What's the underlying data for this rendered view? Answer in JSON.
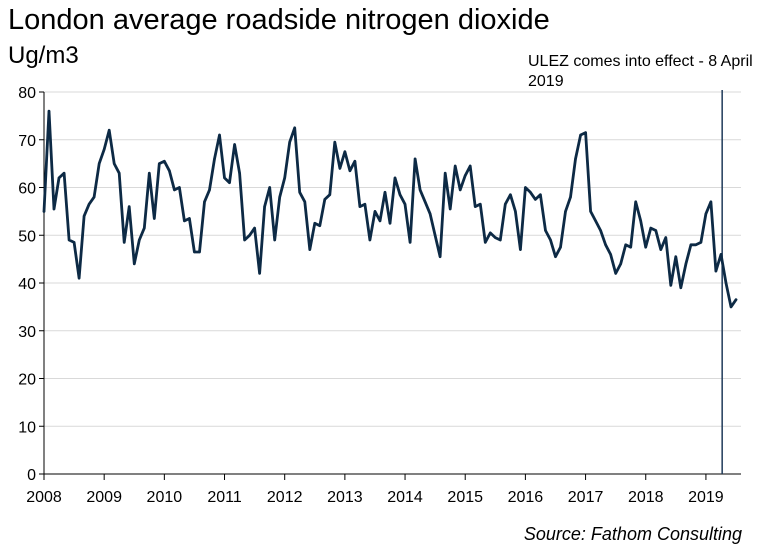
{
  "title": "London average roadside nitrogen dioxide",
  "unit_label": "Ug/m3",
  "annotation": "ULEZ comes into effect - 8 April 2019",
  "source": "Source: Fathom Consulting",
  "colors": {
    "line": "#0d2a45",
    "event_line": "#1f3a5a",
    "grid": "#d9d9d9",
    "axis": "#000000"
  },
  "chart_data": {
    "type": "line",
    "title": "London average roadside nitrogen dioxide",
    "ylabel": "Ug/m3",
    "xlabel": "",
    "ylim": [
      0,
      80
    ],
    "yticks": [
      0,
      10,
      20,
      30,
      40,
      50,
      60,
      70,
      80
    ],
    "xlim": [
      2008.0,
      2019.583
    ],
    "xticks": [
      2008,
      2009,
      2010,
      2011,
      2012,
      2013,
      2014,
      2015,
      2016,
      2017,
      2018,
      2019
    ],
    "grid": "horizontal",
    "annotations": [
      {
        "text": "ULEZ comes into effect - 8 April 2019",
        "x": 2019.27
      }
    ],
    "series": [
      {
        "frequency": "monthly",
        "start": "2008-01",
        "values": [
          55,
          76,
          55.5,
          62,
          63,
          49,
          48.5,
          41,
          54,
          56.5,
          58,
          65,
          68,
          72,
          65,
          63,
          48.5,
          56,
          44,
          49,
          51.5,
          63,
          53.5,
          65,
          65.5,
          63.5,
          59.5,
          60,
          53,
          53.5,
          46.5,
          46.5,
          57,
          59.5,
          66,
          71,
          62,
          61,
          69,
          63,
          49,
          50,
          51.5,
          42,
          56,
          60,
          49,
          58,
          62,
          69.5,
          72.5,
          59,
          57,
          47,
          52.5,
          52,
          57.5,
          58.5,
          69.5,
          64,
          67.5,
          63.5,
          65.5,
          56,
          56.5,
          49,
          55,
          53,
          59,
          52.5,
          62,
          58.5,
          56.5,
          48.5,
          66,
          59.5,
          57,
          54.5,
          50,
          45.5,
          63,
          55.5,
          64.5,
          59.5,
          62.5,
          64.5,
          56,
          56.5,
          48.5,
          50.5,
          49.5,
          49,
          56.5,
          58.5,
          55,
          47,
          60,
          59,
          57.5,
          58.5,
          51,
          49,
          45.5,
          47.5,
          55,
          58,
          66,
          71,
          71.5,
          55,
          53,
          51,
          48,
          46,
          42,
          44,
          48,
          47.5,
          57,
          53,
          47.5,
          51.5,
          51,
          47,
          49.5,
          39.5,
          45.5,
          39,
          44,
          48,
          48,
          48.5,
          54.5,
          57,
          42.5,
          46,
          40,
          35,
          36.5
        ]
      }
    ]
  }
}
